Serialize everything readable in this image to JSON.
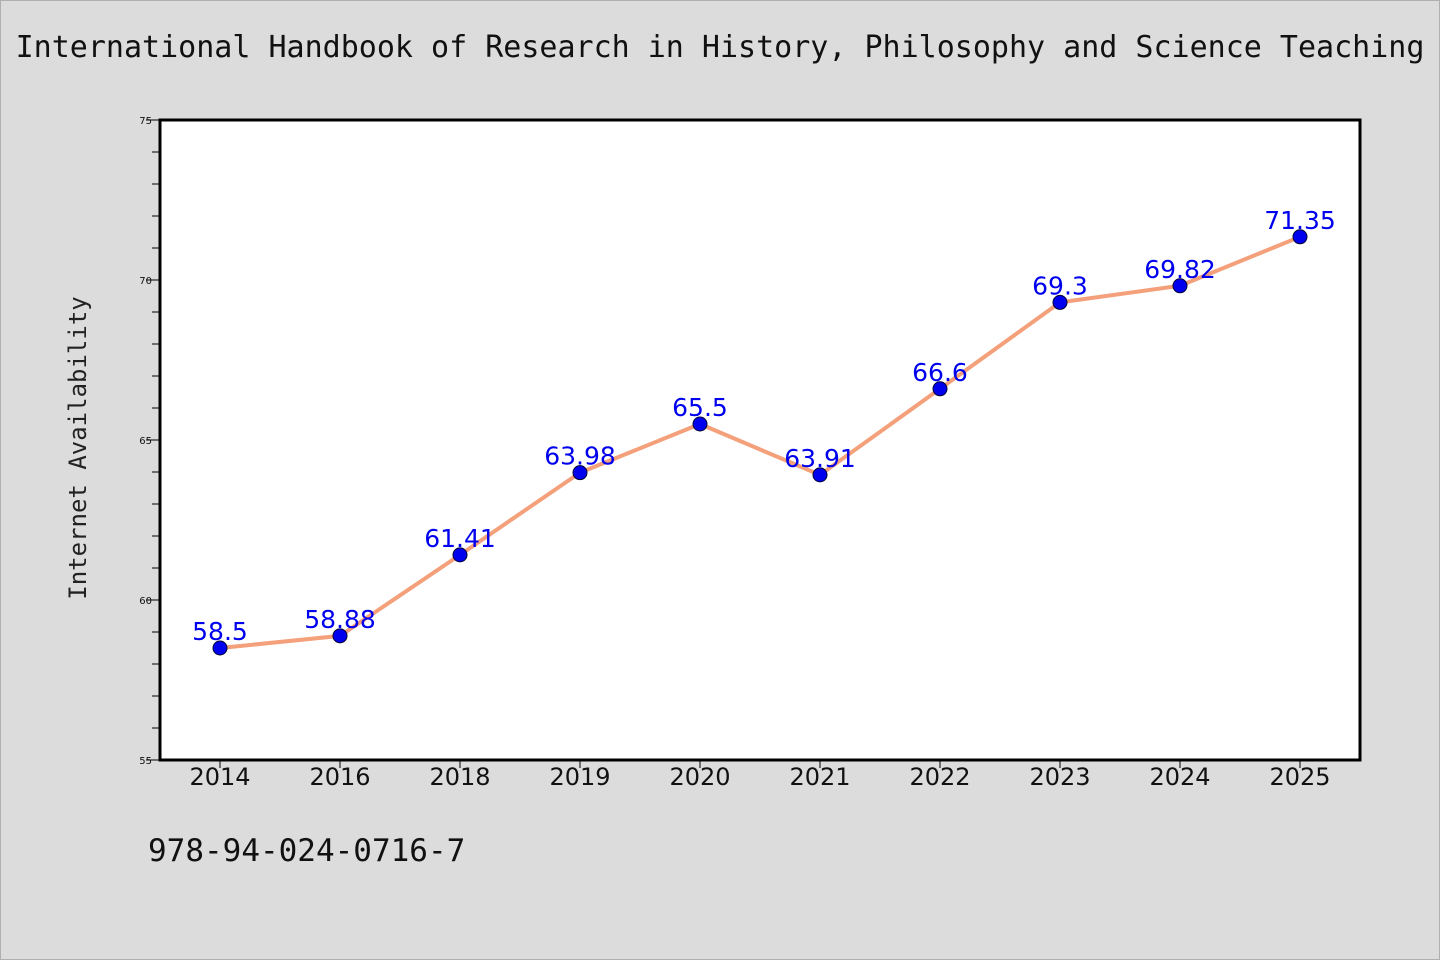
{
  "chart_data": {
    "type": "line",
    "title": "International Handbook of Research in History, Philosophy and Science Teaching",
    "ylabel": "Internet Availability",
    "xlabel": "",
    "categories": [
      "2014",
      "2016",
      "2018",
      "2019",
      "2020",
      "2021",
      "2022",
      "2023",
      "2024",
      "2025"
    ],
    "series": [
      {
        "values": [
          58.5,
          58.88,
          61.41,
          63.98,
          65.5,
          63.91,
          66.6,
          69.3,
          69.82,
          71.35
        ],
        "data_labels": [
          "58.5",
          "58.88",
          "61.41",
          "63.98",
          "65.5",
          "63.91",
          "66.6",
          "69.3",
          "69.82",
          "71.35"
        ],
        "line_color": "#f4a07a",
        "marker_color": "#0000ee",
        "label_color": "#0000ee"
      }
    ],
    "ylim": [
      55,
      75
    ],
    "y_ticks": [
      "55",
      "60",
      "65",
      "70",
      "75"
    ],
    "grid": false,
    "legend": "none"
  },
  "footer": {
    "isbn": "978-94-024-0716-7"
  },
  "colors": {
    "background": "#dcdcdc",
    "plot_background": "#ffffff",
    "axis": "#000000"
  }
}
